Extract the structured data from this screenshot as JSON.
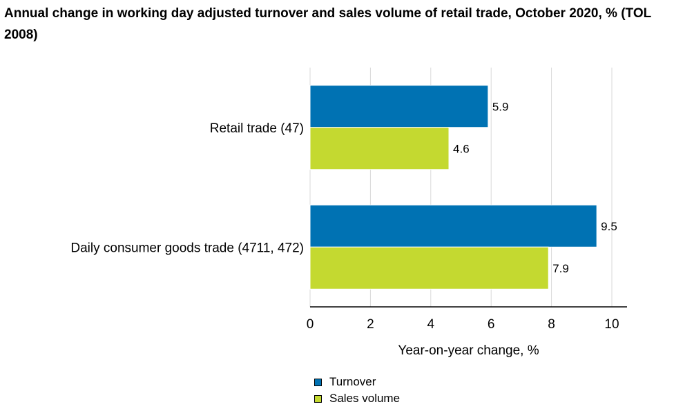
{
  "chart_data": {
    "type": "bar",
    "orientation": "horizontal",
    "title": "Annual change in working day adjusted turnover and sales volume of retail trade, October 2020, % (TOL 2008)",
    "categories": [
      "Retail trade (47)",
      "Daily consumer goods trade (4711, 472)"
    ],
    "series": [
      {
        "name": "Turnover",
        "values": [
          5.9,
          9.5
        ],
        "color": "#0072B3"
      },
      {
        "name": "Sales volume",
        "values": [
          4.6,
          7.9
        ],
        "color": "#C4D930"
      }
    ],
    "xlabel": "Year-on-year change, %",
    "ylabel": "",
    "xlim": [
      0,
      10
    ],
    "xticks": [
      0,
      2,
      4,
      6,
      8,
      10
    ],
    "grid": true,
    "legend_position": "bottom"
  }
}
